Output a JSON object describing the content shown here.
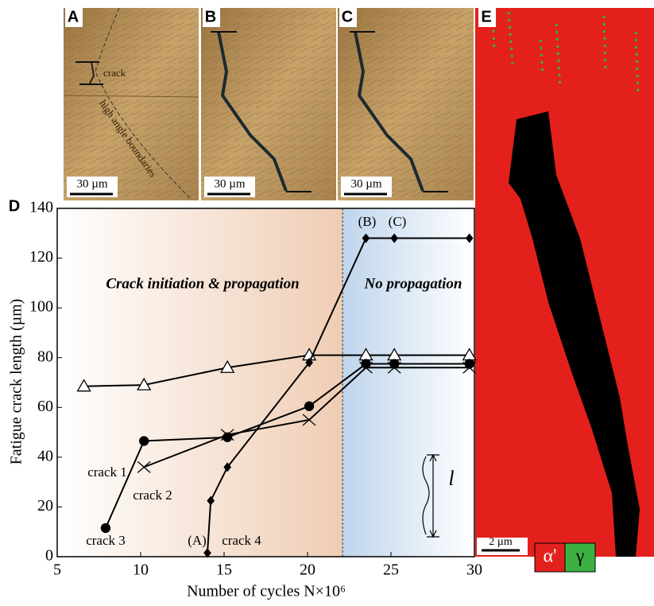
{
  "chart_data": {
    "type": "line",
    "x_label": "Number of cycles N×10⁶",
    "y_label": "Fatigue crack length (µm)",
    "xlim": [
      5,
      30
    ],
    "xticks": [
      5,
      10,
      15,
      20,
      25,
      30
    ],
    "ylim": [
      0,
      140
    ],
    "yticks": [
      0,
      20,
      40,
      60,
      80,
      100,
      120,
      140
    ],
    "grid": false,
    "divider_x": 22.1,
    "regions": [
      "Crack initiation & propagation",
      "No propagation"
    ],
    "series": [
      {
        "name": "crack 1",
        "color": "#000000",
        "marker": "triangle",
        "x": [
          6.6,
          10.2,
          15.2,
          20.1,
          23.5,
          25.2,
          29.7
        ],
        "values": [
          68.5,
          69,
          76,
          81,
          81,
          81,
          81
        ]
      },
      {
        "name": "crack 2",
        "color": "#000000",
        "marker": "cross",
        "x": [
          10.2,
          15.2,
          20.1,
          23.5,
          25.2,
          29.7
        ],
        "values": [
          36,
          49,
          55,
          76,
          76,
          76
        ]
      },
      {
        "name": "crack 3",
        "color": "#000000",
        "marker": "circle",
        "x": [
          7.9,
          10.2,
          15.2,
          20.1,
          23.5,
          25.2,
          29.7
        ],
        "values": [
          11.5,
          46.5,
          48,
          60.5,
          77.5,
          77.5,
          77.5
        ]
      },
      {
        "name": "crack 4",
        "color": "#000000",
        "marker": "diamond",
        "x": [
          14.0,
          14.2,
          15.2,
          20.1,
          23.5,
          25.2,
          29.7
        ],
        "values": [
          1.5,
          22.5,
          36,
          78,
          128,
          128,
          128
        ]
      }
    ],
    "annotations": [
      "(A)",
      "(B)",
      "(C)",
      "l"
    ]
  },
  "panels": [
    {
      "label": "A",
      "scale_bar": "30 µm",
      "notes": [
        "crack",
        "high angle boundaries"
      ]
    },
    {
      "label": "B",
      "scale_bar": "30 µm"
    },
    {
      "label": "C",
      "scale_bar": "30 µm"
    },
    {
      "label": "D"
    },
    {
      "label": "E",
      "scale_bar": "2 µm",
      "phases": [
        "α'",
        "γ"
      ]
    }
  ]
}
